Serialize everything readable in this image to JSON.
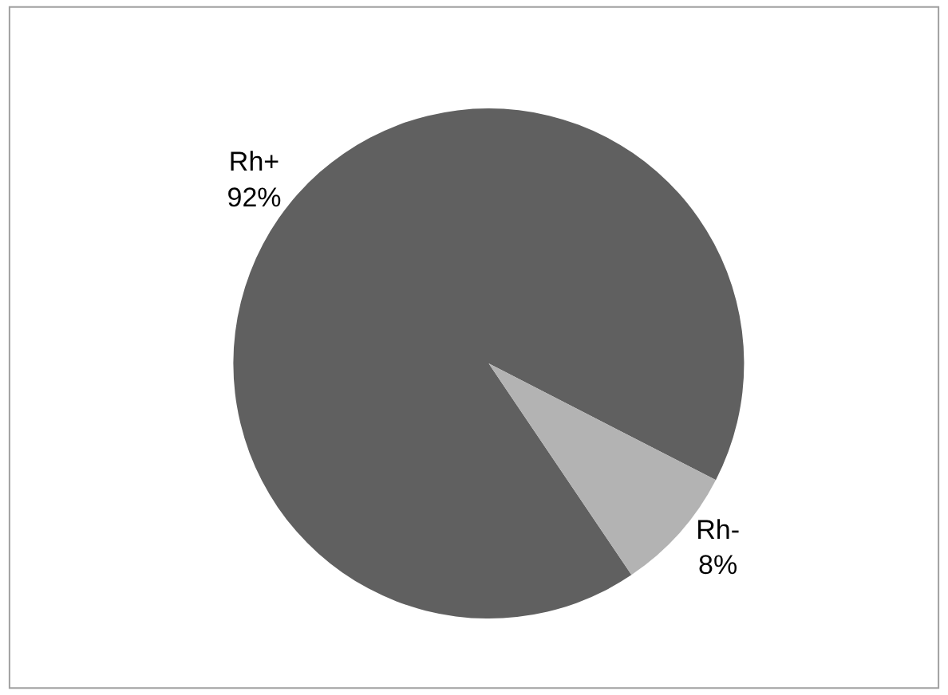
{
  "chart_data": {
    "type": "pie",
    "categories": [
      "Rh+",
      "Rh-"
    ],
    "values": [
      92,
      8
    ],
    "colors": [
      "#606060",
      "#b3b3b3"
    ],
    "value_labels": [
      "92%",
      "8%"
    ],
    "legend": false
  }
}
